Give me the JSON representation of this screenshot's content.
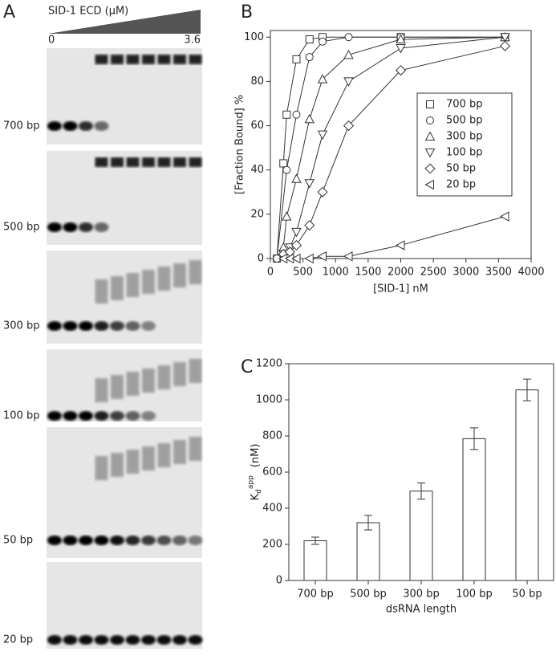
{
  "panel_labels": {
    "a": "A",
    "b": "B",
    "c": "C"
  },
  "gel": {
    "title": "SID-1 ECD (μM)",
    "start": "0",
    "end": "3.6",
    "lanes": [
      "700 bp",
      "500 bp",
      "300 bp",
      "100 bp",
      "50 bp",
      "20 bp"
    ]
  },
  "chart_data": [
    {
      "type": "scatter",
      "xlabel": "[SID-1] nM",
      "ylabel": "[Fraction Bound] %",
      "xlim": [
        0,
        4000
      ],
      "xticks": [
        0,
        500,
        1000,
        1500,
        2000,
        2500,
        3000,
        3500,
        4000
      ],
      "ylim": [
        0,
        103
      ],
      "yticks": [
        0,
        20,
        40,
        60,
        80,
        100
      ],
      "legend": "right",
      "color": "#333333",
      "series": [
        {
          "name": "700 bp",
          "marker": "square",
          "x": [
            100,
            200,
            250,
            400,
            600,
            800,
            2000,
            3600
          ],
          "values": [
            0,
            43,
            65,
            90,
            99,
            100,
            100,
            100
          ]
        },
        {
          "name": "500 bp",
          "marker": "circle",
          "x": [
            100,
            250,
            400,
            600,
            800,
            1200,
            2000,
            3600
          ],
          "values": [
            0,
            40,
            65,
            91,
            98,
            100,
            100,
            100
          ]
        },
        {
          "name": "300 bp",
          "marker": "triangle-up",
          "x": [
            200,
            250,
            400,
            600,
            800,
            1200,
            2000,
            3600
          ],
          "values": [
            5,
            19,
            36,
            63,
            81,
            92,
            99,
            100
          ]
        },
        {
          "name": "100 bp",
          "marker": "triangle-down",
          "x": [
            200,
            300,
            400,
            600,
            800,
            1200,
            2000,
            3600
          ],
          "values": [
            2,
            5,
            12,
            34,
            56,
            80,
            95,
            100
          ]
        },
        {
          "name": "50 bp",
          "marker": "diamond",
          "x": [
            200,
            300,
            400,
            600,
            800,
            1200,
            2000,
            3600
          ],
          "values": [
            2,
            3,
            6,
            15,
            30,
            60,
            85,
            96
          ]
        },
        {
          "name": "20 bp",
          "marker": "triangle-left",
          "x": [
            200,
            300,
            400,
            600,
            800,
            1200,
            2000,
            3600
          ],
          "values": [
            0,
            0,
            0,
            0,
            1,
            1,
            6,
            19
          ]
        }
      ]
    },
    {
      "type": "bar",
      "xlabel": "dsRNA length",
      "ylabel": {
        "base": "K",
        "sub": "d",
        "sup": "app",
        "unit": "(nM)"
      },
      "categories": [
        "700 bp",
        "500 bp",
        "300 bp",
        "100 bp",
        "50 bp"
      ],
      "values": [
        220,
        320,
        495,
        785,
        1055
      ],
      "errors": [
        20,
        40,
        45,
        60,
        60
      ],
      "ylim": [
        0,
        1200
      ],
      "yticks": [
        0,
        200,
        400,
        600,
        800,
        1000,
        1200
      ],
      "color": "#ffffff"
    }
  ]
}
